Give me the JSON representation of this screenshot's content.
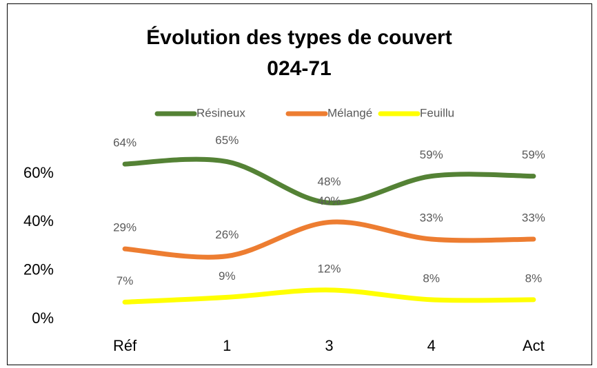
{
  "chart_data": {
    "type": "line",
    "title": "Évolution des types de couvert",
    "subtitle": "024-71",
    "categories": [
      "Réf",
      "1",
      "3",
      "4",
      "Act"
    ],
    "series": [
      {
        "name": "Résineux",
        "color": "#548235",
        "values": [
          64,
          65,
          48,
          59,
          59
        ],
        "value_labels": [
          "64%",
          "65%",
          "48%",
          "59%",
          "59%"
        ]
      },
      {
        "name": "Mélangé",
        "color": "#ed7d31",
        "values": [
          29,
          26,
          40,
          33,
          33
        ],
        "value_labels": [
          "29%",
          "26%",
          "40%",
          "33%",
          "33%"
        ]
      },
      {
        "name": "Feuillu",
        "color": "#ffff00",
        "values": [
          7,
          9,
          12,
          8,
          8
        ],
        "value_labels": [
          "7%",
          "9%",
          "12%",
          "8%",
          "8%"
        ]
      }
    ],
    "ylim": [
      0,
      70
    ],
    "yticks": [
      {
        "value": 0,
        "label": "0%"
      },
      {
        "value": 20,
        "label": "20%"
      },
      {
        "value": 40,
        "label": "40%"
      },
      {
        "value": 60,
        "label": "60%"
      }
    ],
    "smooth": true,
    "legend": "top"
  }
}
